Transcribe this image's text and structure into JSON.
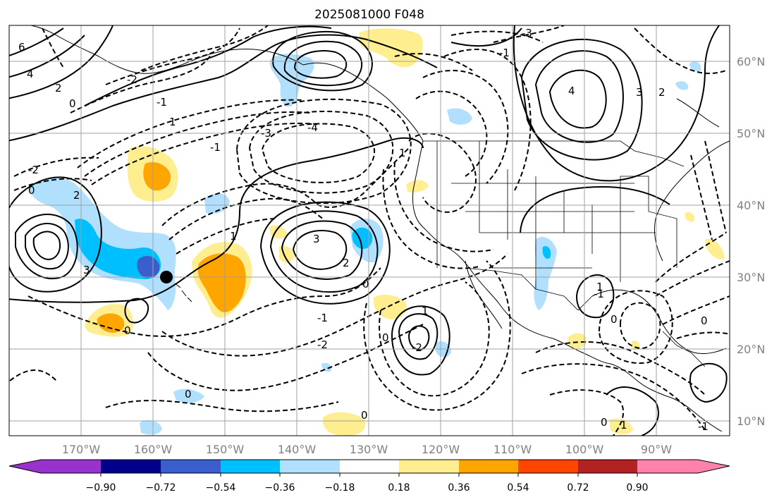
{
  "title": "2025081000 F048",
  "map": {
    "lat_labels": [
      "60°N",
      "50°N",
      "40°N",
      "30°N",
      "20°N",
      "10°N"
    ],
    "lon_labels": [
      "170°W",
      "160°W",
      "150°W",
      "140°W",
      "130°W",
      "120°W",
      "110°W",
      "100°W",
      "90°W"
    ],
    "contour_labels": [
      "6",
      "4",
      "2",
      "0",
      "-1",
      "-2",
      "-3",
      "-4",
      "1",
      "3",
      "-2",
      "0",
      "-1",
      "2",
      "3",
      "-3",
      "4",
      "3",
      "2",
      "1",
      "0",
      "-1",
      "-2",
      "1",
      "0",
      "-2",
      "2",
      "0",
      "1",
      "-1",
      "0",
      "0",
      "-1",
      "1",
      "0",
      "0",
      "-1",
      "0",
      "1"
    ],
    "fill_palette": {
      "purple": "#9932cc",
      "navy": "#00008b",
      "royal_blue": "#3a5fcd",
      "deep_sky_blue": "#00bfff",
      "light_sky_blue": "#b0e0fe",
      "light_yellow": "#ffee90",
      "orange": "#ffa500",
      "orange_red": "#ff4500",
      "firebrick": "#b22222",
      "hot_pink": "#ff82ab"
    },
    "storm_marker": "tropical-cyclone-position"
  },
  "colorbar": {
    "tick_labels": [
      "−0.90",
      "−0.72",
      "−0.54",
      "−0.36",
      "−0.18",
      "0.18",
      "0.36",
      "0.54",
      "0.72",
      "0.90"
    ],
    "colors": [
      "#9932cc",
      "#00008b",
      "#3a5fcd",
      "#00bfff",
      "#b0e0fe",
      "#ffffff",
      "#ffee90",
      "#ffa500",
      "#ff4500",
      "#b22222",
      "#ff82ab"
    ]
  }
}
